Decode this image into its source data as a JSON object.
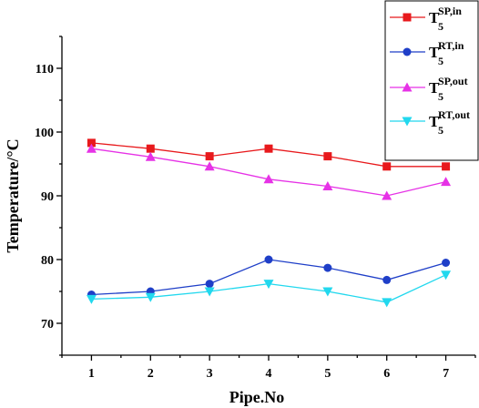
{
  "chart_data": {
    "type": "line",
    "xlabel": "Pipe.No",
    "ylabel": "Temperature/°C",
    "x": [
      1,
      2,
      3,
      4,
      5,
      6,
      7
    ],
    "xlim": [
      0.5,
      7.5
    ],
    "ylim": [
      65,
      115
    ],
    "yticks": [
      70,
      80,
      90,
      100,
      110
    ],
    "legend_position": "top-right",
    "series": [
      {
        "name_main": "T",
        "name_sub": "5",
        "name_sup": "SP,in",
        "color": "#e8191c",
        "marker": "square",
        "values": [
          98.3,
          97.4,
          96.2,
          97.4,
          96.2,
          94.6,
          94.6
        ]
      },
      {
        "name_main": "T",
        "name_sub": "5",
        "name_sup": "RT,in",
        "color": "#1f3fc8",
        "marker": "circle",
        "values": [
          74.5,
          75.0,
          76.2,
          80.0,
          78.7,
          76.8,
          79.5
        ]
      },
      {
        "name_main": "T",
        "name_sub": "5",
        "name_sup": "SP,out",
        "color": "#e632e6",
        "marker": "triangle-up",
        "values": [
          97.4,
          96.1,
          94.6,
          92.6,
          91.5,
          90.0,
          92.2
        ]
      },
      {
        "name_main": "T",
        "name_sub": "5",
        "name_sup": "RT,out",
        "color": "#22d8ee",
        "marker": "triangle-down",
        "values": [
          73.8,
          74.1,
          75.0,
          76.2,
          75.0,
          73.3,
          77.6
        ]
      }
    ]
  }
}
